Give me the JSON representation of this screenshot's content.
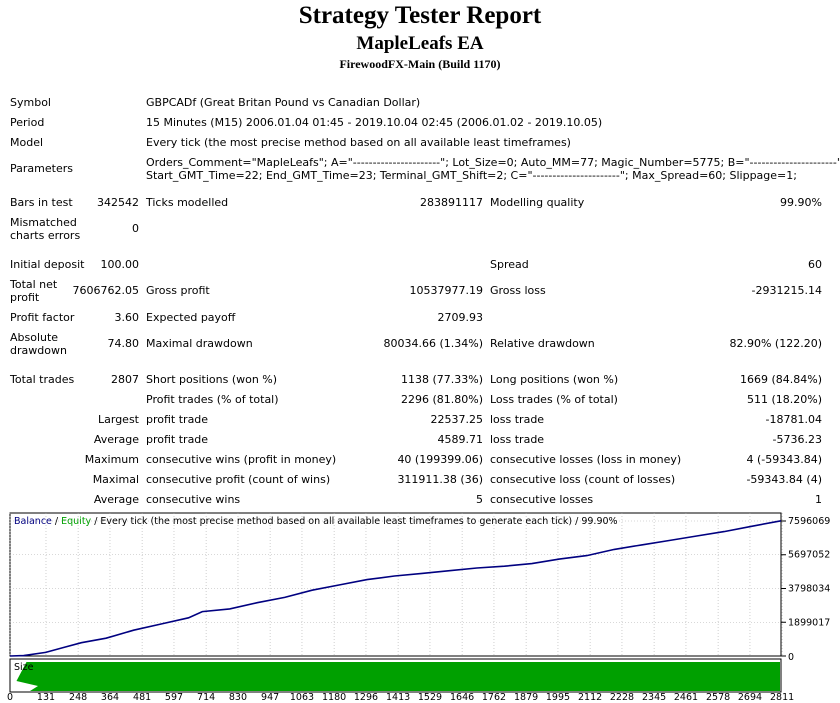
{
  "header": {
    "title": "Strategy Tester Report",
    "ea_name": "MapleLeafs EA",
    "server": "FirewoodFX-Main (Build 1170)"
  },
  "info": {
    "symbol_label": "Symbol",
    "symbol_value": "GBPCADf (Great Britan Pound vs Canadian Dollar)",
    "period_label": "Period",
    "period_value": "15 Minutes (M15) 2006.01.04 01:45 - 2019.10.04 02:45 (2006.01.02 - 2019.10.05)",
    "model_label": "Model",
    "model_value": "Every tick (the most precise method based on all available least timeframes)",
    "parameters_label": "Parameters",
    "parameters_line1": "Orders_Comment=\"MapleLeafs\"; A=\"----------------------\"; Lot_Size=0; Auto_MM=77; Magic_Number=5775; B=\"----------------------\";",
    "parameters_line2": "Start_GMT_Time=22; End_GMT_Time=23; Terminal_GMT_Shift=2; C=\"----------------------\"; Max_Spread=60; Slippage=1;"
  },
  "stats": {
    "bars_label": "Bars in test",
    "bars_value": "342542",
    "ticks_label": "Ticks modelled",
    "ticks_value": "283891117",
    "quality_label": "Modelling quality",
    "quality_value": "99.90%",
    "mismatch_label": "Mismatched charts errors",
    "mismatch_value": "0",
    "deposit_label": "Initial deposit",
    "deposit_value": "100.00",
    "spread_label": "Spread",
    "spread_value": "60",
    "netprofit_label": "Total net profit",
    "netprofit_value": "7606762.05",
    "grossprofit_label": "Gross profit",
    "grossprofit_value": "10537977.19",
    "grossloss_label": "Gross loss",
    "grossloss_value": "-2931215.14",
    "pf_label": "Profit factor",
    "pf_value": "3.60",
    "payoff_label": "Expected payoff",
    "payoff_value": "2709.93",
    "absdd_label": "Absolute drawdown",
    "absdd_value": "74.80",
    "maxdd_label": "Maximal drawdown",
    "maxdd_value": "80034.66 (1.34%)",
    "reldd_label": "Relative drawdown",
    "reldd_value": "82.90% (122.20)",
    "trades_label": "Total trades",
    "trades_value": "2807",
    "short_label": "Short positions (won %)",
    "short_value": "1138 (77.33%)",
    "long_label": "Long positions (won %)",
    "long_value": "1669 (84.84%)",
    "pt_label": "Profit trades (% of total)",
    "pt_value": "2296 (81.80%)",
    "lt_label": "Loss trades (% of total)",
    "lt_value": "511 (18.20%)",
    "largest_label": "Largest",
    "largest_profit_label": "profit trade",
    "largest_profit_value": "22537.25",
    "largest_loss_label": "loss trade",
    "largest_loss_value": "-18781.04",
    "average_label": "Average",
    "average_profit_label": "profit trade",
    "average_profit_value": "4589.71",
    "average_loss_label": "loss trade",
    "average_loss_value": "-5736.23",
    "maximum_label": "Maximum",
    "max_wins_label": "consecutive wins (profit in money)",
    "max_wins_value": "40 (199399.06)",
    "max_losses_label": "consecutive losses (loss in money)",
    "max_losses_value": "4 (-59343.84)",
    "maximal_label": "Maximal",
    "maximal_profit_label": "consecutive profit (count of wins)",
    "maximal_profit_value": "311911.38 (36)",
    "maximal_loss_label": "consecutive loss (count of losses)",
    "maximal_loss_value": "-59343.84 (4)",
    "avgc_label": "Average",
    "avgc_wins_label": "consecutive wins",
    "avgc_wins_value": "5",
    "avgc_losses_label": "consecutive losses",
    "avgc_losses_value": "1"
  },
  "chart_data": {
    "type": "line",
    "legend_balance": "Balance",
    "legend_sep1": " / ",
    "legend_equity": "Equity",
    "legend_rest": " / Every tick (the most precise method based on all available least timeframes to generate each tick) / 99.90%",
    "size_label": "Size",
    "balance_color": "#000080",
    "equity_color": "#00A000",
    "size_color": "#00A000",
    "y_ticks": [
      "7596069",
      "5697052",
      "3798034",
      "1899017",
      "0"
    ],
    "y_tick_values": [
      7596069,
      5697052,
      3798034,
      1899017,
      0
    ],
    "x_ticks": [
      "0",
      "131",
      "248",
      "364",
      "481",
      "597",
      "714",
      "830",
      "947",
      "1063",
      "1180",
      "1296",
      "1413",
      "1529",
      "1646",
      "1762",
      "1879",
      "1995",
      "2112",
      "2228",
      "2345",
      "2461",
      "2578",
      "2694",
      "2811"
    ],
    "x_tick_values": [
      0,
      131,
      248,
      364,
      481,
      597,
      714,
      830,
      947,
      1063,
      1180,
      1296,
      1413,
      1529,
      1646,
      1762,
      1879,
      1995,
      2112,
      2228,
      2345,
      2461,
      2578,
      2694,
      2811
    ],
    "ylim": [
      0,
      7596069
    ],
    "xlim": [
      0,
      2807
    ],
    "series": [
      {
        "name": "Balance",
        "x": [
          0,
          50,
          130,
          200,
          260,
          350,
          450,
          550,
          650,
          700,
          800,
          900,
          1000,
          1100,
          1200,
          1300,
          1400,
          1500,
          1600,
          1700,
          1800,
          1900,
          2000,
          2100,
          2200,
          2300,
          2400,
          2500,
          2600,
          2700,
          2807
        ],
        "y": [
          100,
          20000,
          200000,
          500000,
          750000,
          1000000,
          1450000,
          1800000,
          2150000,
          2500000,
          2650000,
          3000000,
          3300000,
          3700000,
          4000000,
          4300000,
          4500000,
          4650000,
          4800000,
          4950000,
          5050000,
          5200000,
          5450000,
          5650000,
          6000000,
          6250000,
          6500000,
          6750000,
          7000000,
          7300000,
          7606762
        ]
      }
    ]
  }
}
